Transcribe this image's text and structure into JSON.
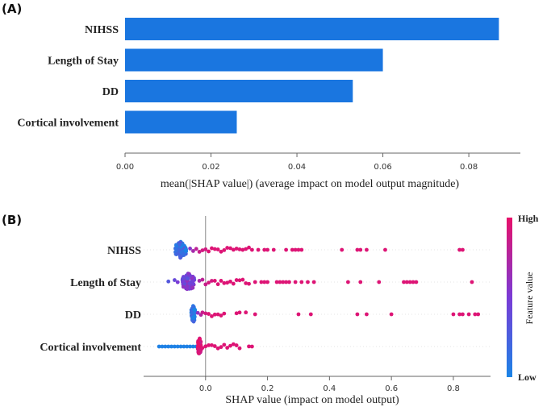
{
  "chart_data": [
    {
      "panel": "(A)",
      "type": "bar",
      "orientation": "horizontal",
      "categories": [
        "NIHSS",
        "Length of Stay",
        "DD",
        "Cortical involvement"
      ],
      "values": [
        0.087,
        0.06,
        0.053,
        0.026
      ],
      "xlabel": "mean(|SHAP value|) (average impact on model output magnitude)",
      "xlim": [
        0,
        0.092
      ],
      "xticks": [
        0.0,
        0.02,
        0.04,
        0.06,
        0.08
      ],
      "xtick_labels": [
        "0.00",
        "0.02",
        "0.04",
        "0.06",
        "0.08"
      ],
      "bar_color": "#1a76e0"
    },
    {
      "panel": "(B)",
      "type": "scatter",
      "subtype": "beeswarm",
      "categories": [
        "NIHSS",
        "Length of Stay",
        "DD",
        "Cortical involvement"
      ],
      "xlabel": "SHAP value (impact on model output)",
      "xlim": [
        -0.2,
        0.92
      ],
      "xticks": [
        0.0,
        0.2,
        0.4,
        0.6,
        0.8
      ],
      "xtick_labels": [
        "0.0",
        "0.2",
        "0.4",
        "0.6",
        "0.8"
      ],
      "colorbar": {
        "label": "Feature value",
        "high": "High",
        "low": "Low",
        "high_color": "#e8106a",
        "mid_color": "#7a3bd6",
        "low_color": "#1a84e6"
      },
      "series": [
        {
          "feature": "NIHSS",
          "cluster": {
            "center": -0.08,
            "width": 0.035,
            "count": 70,
            "color_value": 0.15
          },
          "points": [
            [
              -0.05,
              0.55
            ],
            [
              -0.04,
              0.7
            ],
            [
              -0.03,
              0.8
            ],
            [
              -0.02,
              0.85
            ],
            [
              -0.01,
              0.9
            ],
            [
              0.0,
              0.9
            ],
            [
              0.01,
              0.95
            ],
            [
              0.02,
              0.95
            ],
            [
              0.03,
              0.95
            ],
            [
              0.04,
              0.95
            ],
            [
              0.05,
              0.95
            ],
            [
              0.06,
              0.95
            ],
            [
              0.07,
              0.95
            ],
            [
              0.08,
              0.95
            ],
            [
              0.09,
              0.95
            ],
            [
              0.1,
              0.95
            ],
            [
              0.11,
              0.95
            ],
            [
              0.12,
              0.95
            ],
            [
              0.13,
              0.95
            ],
            [
              0.14,
              0.95
            ],
            [
              0.15,
              0.95
            ],
            [
              0.17,
              0.95
            ],
            [
              0.19,
              0.95
            ],
            [
              0.2,
              0.95
            ],
            [
              0.22,
              0.95
            ],
            [
              0.26,
              0.95
            ],
            [
              0.28,
              0.95
            ],
            [
              0.29,
              0.95
            ],
            [
              0.3,
              0.95
            ],
            [
              0.31,
              0.95
            ],
            [
              0.44,
              0.95
            ],
            [
              0.49,
              0.95
            ],
            [
              0.5,
              0.95
            ],
            [
              0.52,
              0.95
            ],
            [
              0.58,
              0.95
            ],
            [
              0.82,
              0.95
            ],
            [
              0.83,
              0.95
            ]
          ]
        },
        {
          "feature": "Length of Stay",
          "cluster": {
            "center": -0.055,
            "width": 0.04,
            "count": 70,
            "color_value": 0.5
          },
          "points": [
            [
              -0.12,
              0.3
            ],
            [
              -0.1,
              0.4
            ],
            [
              -0.09,
              0.5
            ],
            [
              -0.02,
              0.7
            ],
            [
              -0.01,
              0.8
            ],
            [
              0.0,
              0.85
            ],
            [
              0.01,
              0.9
            ],
            [
              0.02,
              0.9
            ],
            [
              0.03,
              0.95
            ],
            [
              0.04,
              0.95
            ],
            [
              0.05,
              0.95
            ],
            [
              0.06,
              0.95
            ],
            [
              0.07,
              0.95
            ],
            [
              0.08,
              0.95
            ],
            [
              0.09,
              0.95
            ],
            [
              0.1,
              0.95
            ],
            [
              0.11,
              0.95
            ],
            [
              0.12,
              0.95
            ],
            [
              0.13,
              0.95
            ],
            [
              0.14,
              0.95
            ],
            [
              0.16,
              0.95
            ],
            [
              0.18,
              0.95
            ],
            [
              0.19,
              0.95
            ],
            [
              0.2,
              0.95
            ],
            [
              0.23,
              0.95
            ],
            [
              0.24,
              0.95
            ],
            [
              0.25,
              0.95
            ],
            [
              0.26,
              0.95
            ],
            [
              0.27,
              0.95
            ],
            [
              0.29,
              0.95
            ],
            [
              0.31,
              0.95
            ],
            [
              0.33,
              0.95
            ],
            [
              0.35,
              0.95
            ],
            [
              0.46,
              0.95
            ],
            [
              0.5,
              0.95
            ],
            [
              0.56,
              0.95
            ],
            [
              0.64,
              0.95
            ],
            [
              0.65,
              0.95
            ],
            [
              0.66,
              0.95
            ],
            [
              0.67,
              0.95
            ],
            [
              0.68,
              0.95
            ],
            [
              0.86,
              0.95
            ]
          ]
        },
        {
          "feature": "DD",
          "cluster": {
            "center": -0.04,
            "width": 0.012,
            "count": 50,
            "color_value": 0.05
          },
          "points": [
            [
              -0.025,
              0.6
            ],
            [
              -0.015,
              0.75
            ],
            [
              -0.01,
              0.85
            ],
            [
              0.0,
              0.9
            ],
            [
              0.01,
              0.95
            ],
            [
              0.02,
              0.95
            ],
            [
              0.03,
              0.95
            ],
            [
              0.04,
              0.95
            ],
            [
              0.05,
              0.95
            ],
            [
              0.06,
              0.95
            ],
            [
              0.1,
              0.95
            ],
            [
              0.11,
              0.95
            ],
            [
              0.13,
              0.95
            ],
            [
              0.16,
              0.95
            ],
            [
              0.3,
              0.95
            ],
            [
              0.34,
              0.95
            ],
            [
              0.49,
              0.95
            ],
            [
              0.52,
              0.95
            ],
            [
              0.6,
              0.95
            ],
            [
              0.8,
              0.95
            ],
            [
              0.82,
              0.95
            ],
            [
              0.83,
              0.95
            ],
            [
              0.85,
              0.95
            ],
            [
              0.87,
              0.95
            ],
            [
              0.88,
              0.95
            ]
          ]
        },
        {
          "feature": "Cortical involvement",
          "cluster": {
            "center": -0.02,
            "width": 0.01,
            "count": 60,
            "color_value": 0.95
          },
          "low_points": [
            -0.15,
            -0.14,
            -0.13,
            -0.12,
            -0.11,
            -0.1,
            -0.09,
            -0.08,
            -0.07,
            -0.06,
            -0.05,
            -0.04,
            -0.03
          ],
          "points": [
            [
              -0.01,
              0.95
            ],
            [
              0.0,
              0.95
            ],
            [
              0.01,
              0.95
            ],
            [
              0.02,
              0.95
            ],
            [
              0.03,
              0.95
            ],
            [
              0.04,
              0.95
            ],
            [
              0.05,
              0.95
            ],
            [
              0.06,
              0.95
            ],
            [
              0.07,
              0.95
            ],
            [
              0.08,
              0.95
            ],
            [
              0.09,
              0.95
            ],
            [
              0.1,
              0.95
            ],
            [
              0.11,
              0.95
            ],
            [
              0.14,
              0.95
            ],
            [
              0.15,
              0.95
            ]
          ]
        }
      ]
    }
  ]
}
